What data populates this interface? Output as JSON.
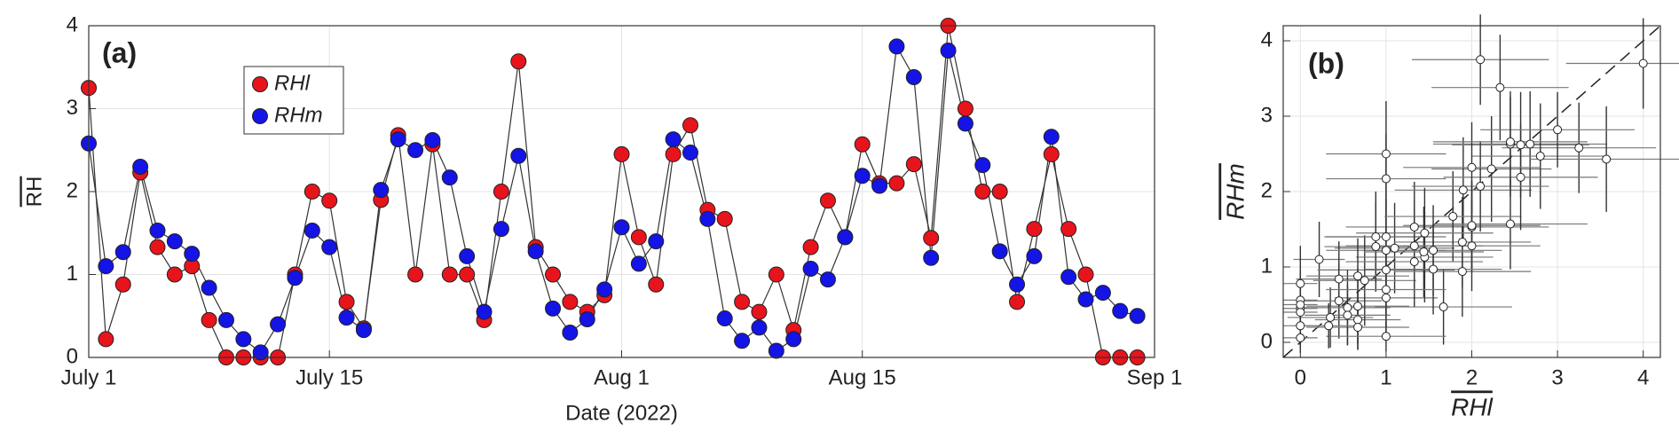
{
  "chart_data": [
    {
      "type": "line",
      "annotation": "(a)",
      "xlabel": "Date (2022)",
      "ylabel": "RH",
      "grid": true,
      "legend": "upper left",
      "x": [
        "2022-07-01",
        "2022-07-02",
        "2022-07-03",
        "2022-07-04",
        "2022-07-05",
        "2022-07-06",
        "2022-07-07",
        "2022-07-08",
        "2022-07-09",
        "2022-07-10",
        "2022-07-11",
        "2022-07-12",
        "2022-07-13",
        "2022-07-14",
        "2022-07-15",
        "2022-07-16",
        "2022-07-17",
        "2022-07-18",
        "2022-07-19",
        "2022-07-20",
        "2022-07-21",
        "2022-07-22",
        "2022-07-23",
        "2022-07-24",
        "2022-07-25",
        "2022-07-26",
        "2022-07-27",
        "2022-07-28",
        "2022-07-29",
        "2022-07-30",
        "2022-07-31",
        "2022-08-01",
        "2022-08-02",
        "2022-08-03",
        "2022-08-04",
        "2022-08-05",
        "2022-08-06",
        "2022-08-07",
        "2022-08-08",
        "2022-08-09",
        "2022-08-10",
        "2022-08-11",
        "2022-08-12",
        "2022-08-13",
        "2022-08-14",
        "2022-08-15",
        "2022-08-16",
        "2022-08-17",
        "2022-08-18",
        "2022-08-19",
        "2022-08-20",
        "2022-08-21",
        "2022-08-22",
        "2022-08-23",
        "2022-08-24",
        "2022-08-25",
        "2022-08-26",
        "2022-08-27",
        "2022-08-28",
        "2022-08-29",
        "2022-08-30",
        "2022-08-31"
      ],
      "xlim": [
        "2022-07-01",
        "2022-09-01"
      ],
      "xticks": [
        {
          "value": "2022-07-01",
          "label": "July 1"
        },
        {
          "value": "2022-07-15",
          "label": "July 15"
        },
        {
          "value": "2022-08-01",
          "label": "Aug 1"
        },
        {
          "value": "2022-08-15",
          "label": "Aug 15"
        },
        {
          "value": "2022-09-01",
          "label": "Sep 1"
        }
      ],
      "ylim": [
        0,
        4
      ],
      "yticks": [
        0,
        1,
        2,
        3,
        4
      ],
      "series": [
        {
          "name": "RHl",
          "color": "#e8141c",
          "values": [
            3.25,
            0.22,
            0.88,
            2.23,
            1.33,
            1.0,
            1.1,
            0.45,
            0,
            0,
            0,
            0,
            1.0,
            2.0,
            1.89,
            0.67,
            0.35,
            1.9,
            2.68,
            1.0,
            2.57,
            1.0,
            1.0,
            0.45,
            2.0,
            3.57,
            1.33,
            1.0,
            0.67,
            0.55,
            0.75,
            2.45,
            1.45,
            0.88,
            2.45,
            2.8,
            1.78,
            1.67,
            0.67,
            0.55,
            1.0,
            0.33,
            1.33,
            1.89,
            1.45,
            2.57,
            2.1,
            2.1,
            2.33,
            1.44,
            4.0,
            3.0,
            2.0,
            2.0,
            0.67,
            1.55,
            2.45,
            1.55,
            1.0,
            0,
            0,
            0
          ]
        },
        {
          "name": "RHm",
          "color": "#1414e6",
          "values": [
            2.58,
            1.1,
            1.27,
            2.3,
            1.53,
            1.4,
            1.25,
            0.84,
            0.45,
            0.22,
            0.06,
            0.4,
            0.96,
            1.53,
            1.33,
            0.48,
            0.33,
            2.02,
            2.63,
            2.5,
            2.62,
            2.17,
            1.22,
            0.55,
            1.55,
            2.43,
            1.28,
            0.59,
            0.3,
            0.46,
            0.82,
            1.57,
            1.13,
            1.4,
            2.63,
            2.47,
            1.67,
            0.47,
            0.2,
            0.36,
            0.08,
            0.22,
            1.07,
            0.94,
            1.45,
            2.19,
            2.07,
            3.75,
            3.38,
            1.2,
            3.7,
            2.82,
            2.32,
            1.28,
            0.88,
            1.22,
            2.66,
            0.97,
            0.7,
            0.78,
            0.56,
            0.5
          ]
        }
      ]
    },
    {
      "type": "scatter",
      "annotation": "(b)",
      "xlabel": "RHl",
      "ylabel": "RHm",
      "grid": true,
      "color": "#ffffff",
      "error_color": "#333333",
      "xlim": [
        -0.2,
        4.2
      ],
      "xticks": [
        0,
        1,
        2,
        3,
        4
      ],
      "ylim": [
        -0.2,
        4.2
      ],
      "yticks": [
        0,
        1,
        2,
        3,
        4
      ],
      "x": [
        3.25,
        0.22,
        0.88,
        2.23,
        1.33,
        1.0,
        1.1,
        0.45,
        0,
        0,
        0,
        0,
        1.0,
        2.0,
        1.89,
        0.67,
        0.35,
        1.9,
        2.68,
        1.0,
        2.57,
        1.0,
        1.0,
        0.45,
        2.0,
        3.57,
        1.33,
        1.0,
        0.67,
        0.55,
        0.75,
        2.45,
        1.45,
        0.88,
        2.45,
        2.8,
        1.78,
        1.67,
        0.67,
        0.55,
        1.0,
        0.33,
        1.33,
        1.89,
        1.45,
        2.57,
        2.1,
        2.1,
        2.33,
        1.44,
        4.0,
        3.0,
        2.0,
        2.0,
        0.67,
        1.55,
        2.45,
        1.55,
        1.0,
        0,
        0,
        0
      ],
      "y": [
        2.58,
        1.1,
        1.27,
        2.3,
        1.53,
        1.4,
        1.25,
        0.84,
        0.45,
        0.22,
        0.06,
        0.4,
        0.96,
        1.53,
        1.33,
        0.48,
        0.33,
        2.02,
        2.63,
        2.5,
        2.62,
        2.17,
        1.22,
        0.55,
        1.55,
        2.43,
        1.28,
        0.59,
        0.3,
        0.46,
        0.82,
        1.57,
        1.13,
        1.4,
        2.63,
        2.47,
        1.67,
        0.47,
        0.2,
        0.36,
        0.08,
        0.22,
        1.07,
        0.94,
        1.45,
        2.19,
        2.07,
        3.75,
        3.38,
        1.2,
        3.7,
        2.82,
        2.32,
        1.28,
        0.88,
        1.22,
        2.66,
        0.97,
        0.7,
        0.78,
        0.56,
        0.5
      ],
      "xerr": [
        0.9,
        0.3,
        0.6,
        0.7,
        0.8,
        0.7,
        0.7,
        0.5,
        0.2,
        0.2,
        0.2,
        0.2,
        0.8,
        0.9,
        0.8,
        0.6,
        0.5,
        0.8,
        0.9,
        0.7,
        0.8,
        0.7,
        0.7,
        0.5,
        0.8,
        0.9,
        0.8,
        0.6,
        0.5,
        0.5,
        0.6,
        0.9,
        0.8,
        0.6,
        0.9,
        0.8,
        0.8,
        0.8,
        0.6,
        0.5,
        0.7,
        0.4,
        0.8,
        0.8,
        0.8,
        0.9,
        0.8,
        0.8,
        0.8,
        0.7,
        0.9,
        0.9,
        0.8,
        0.8,
        0.6,
        0.8,
        0.9,
        0.8,
        0.7,
        0.2,
        0.2,
        0.2
      ],
      "yerr": [
        0.6,
        0.5,
        0.6,
        0.7,
        0.6,
        0.5,
        0.6,
        0.5,
        0.4,
        0.3,
        0.2,
        0.4,
        0.6,
        0.6,
        0.6,
        0.5,
        0.4,
        0.7,
        0.7,
        0.7,
        0.7,
        0.6,
        0.6,
        0.5,
        0.6,
        0.7,
        0.6,
        0.5,
        0.4,
        0.5,
        0.6,
        0.6,
        0.6,
        0.6,
        0.7,
        0.7,
        0.6,
        0.5,
        0.3,
        0.4,
        0.2,
        0.3,
        0.6,
        0.6,
        0.6,
        0.7,
        0.6,
        0.6,
        0.7,
        0.6,
        0.6,
        0.5,
        0.6,
        0.6,
        0.5,
        0.6,
        0.6,
        0.6,
        0.5,
        0.5,
        0.4,
        0.4
      ]
    }
  ]
}
